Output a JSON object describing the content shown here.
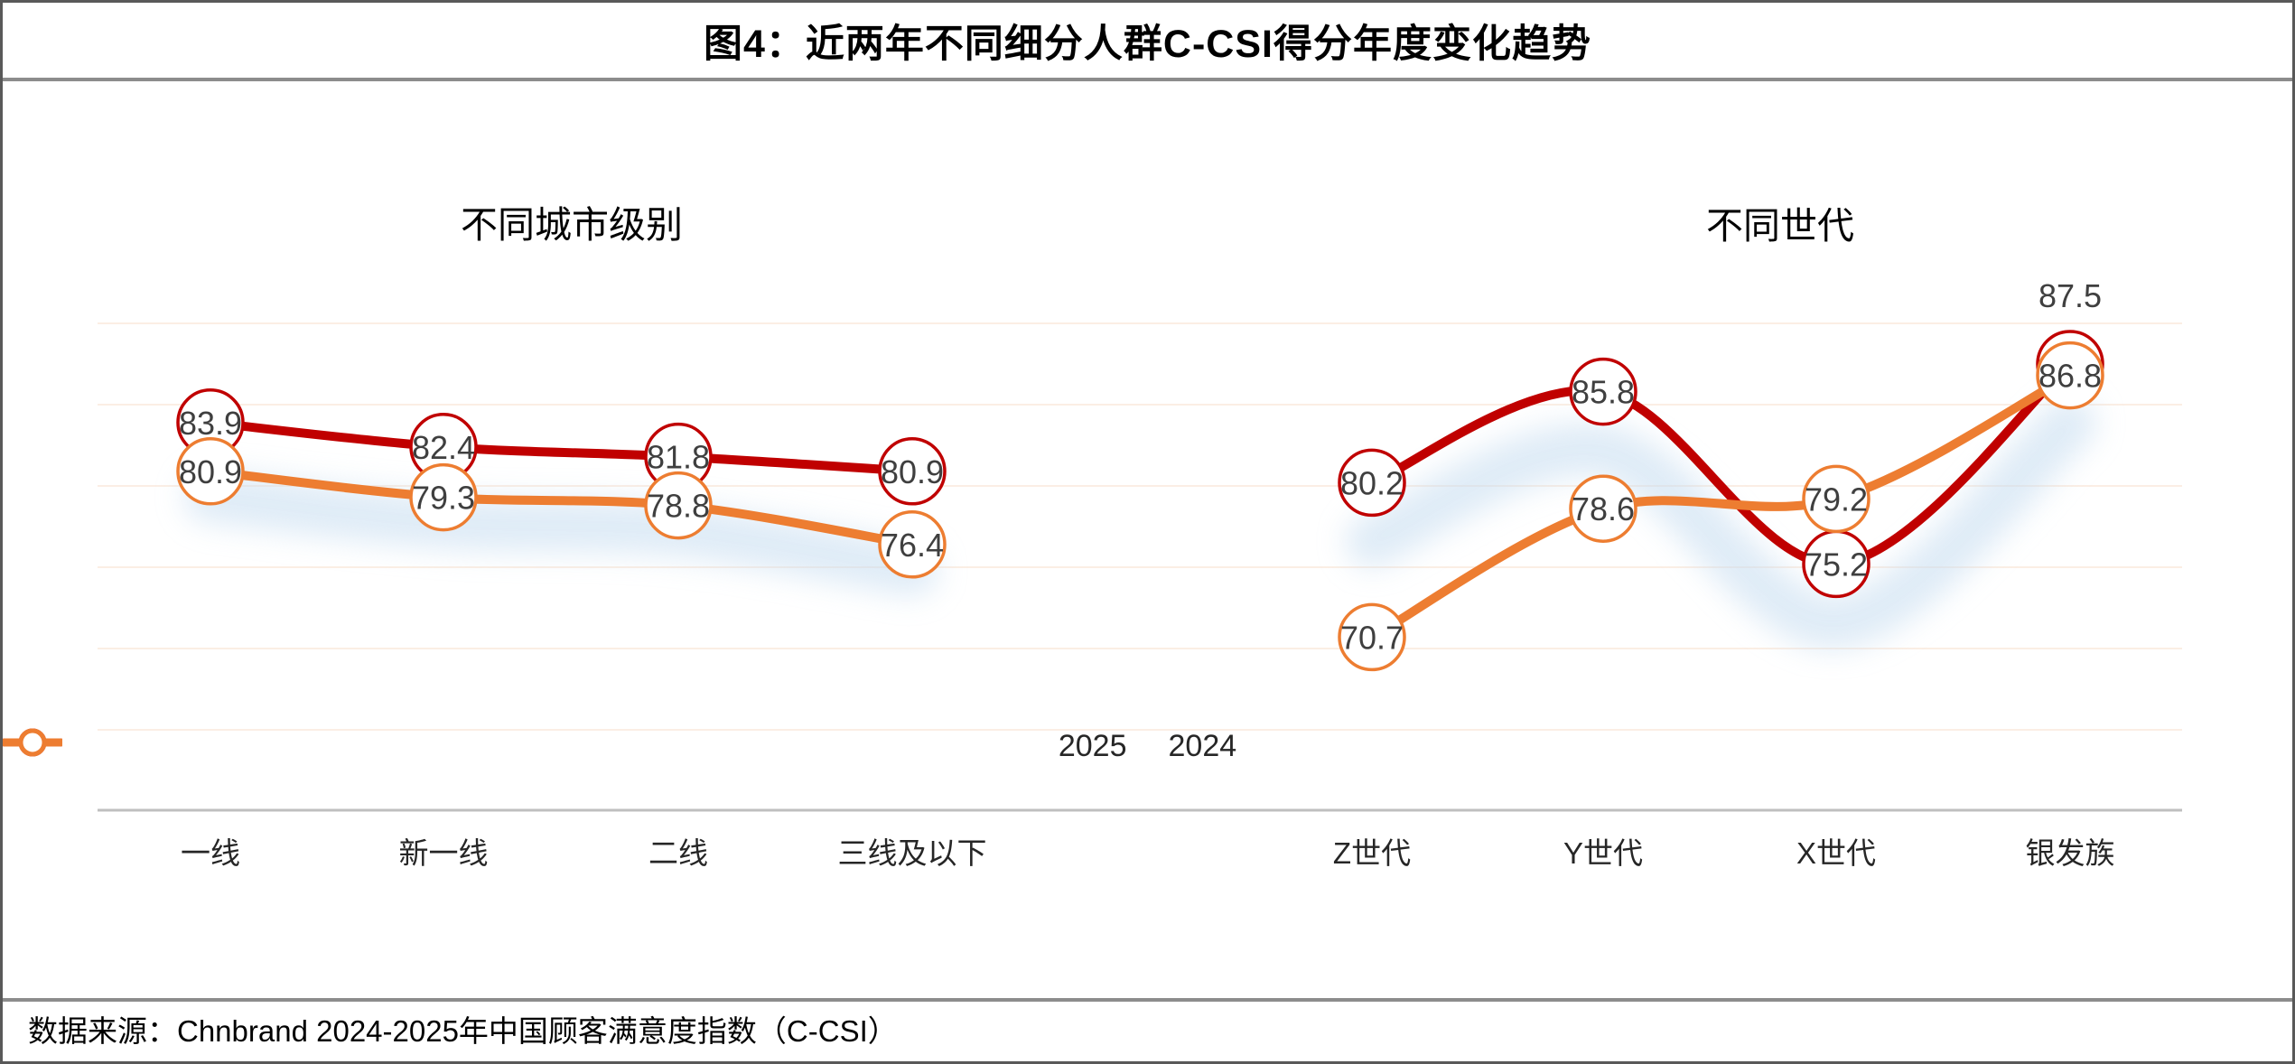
{
  "title": "图4：近两年不同细分人群C-CSI得分年度变化趋势",
  "footer": {
    "source": "数据来源：Chnbrand 2024-2025年中国顾客满意度指数（C-CSI）"
  },
  "legend": [
    {
      "label": "2025",
      "color_key": "red"
    },
    {
      "label": "2024",
      "color_key": "orange"
    }
  ],
  "colors": {
    "red": "#c00000",
    "orange": "#ed7d31",
    "value_label": "#3f3f3f",
    "category_label": "#262626",
    "gridline": "#fbeee4",
    "axis": "#bfbfbf",
    "glow": "#c5dcf0"
  },
  "chart_data": [
    {
      "type": "line",
      "title": "不同城市级别",
      "categories": [
        "一线",
        "新一线",
        "二线",
        "三线及以下"
      ],
      "series": [
        {
          "name": "2025",
          "color_key": "red",
          "values": [
            83.9,
            82.4,
            81.8,
            80.9
          ]
        },
        {
          "name": "2024",
          "color_key": "orange",
          "values": [
            80.9,
            79.3,
            78.8,
            76.4
          ]
        }
      ],
      "ylim": [
        60,
        95
      ],
      "grid_values": [
        65,
        70,
        75,
        80,
        85,
        90
      ],
      "grid_on": true,
      "legend_position": "bottom-center"
    },
    {
      "type": "line",
      "title": "不同世代",
      "categories": [
        "Z世代",
        "Y世代",
        "X世代",
        "银发族"
      ],
      "series": [
        {
          "name": "2025",
          "color_key": "red",
          "values": [
            80.2,
            85.8,
            75.2,
            87.5
          ],
          "label_outside": [
            3
          ]
        },
        {
          "name": "2024",
          "color_key": "orange",
          "values": [
            70.7,
            78.6,
            79.2,
            86.8
          ]
        }
      ],
      "ylim": [
        60,
        95
      ],
      "grid_values": [
        65,
        70,
        75,
        80,
        85,
        90
      ],
      "grid_on": true,
      "legend_position": "bottom-center"
    }
  ]
}
